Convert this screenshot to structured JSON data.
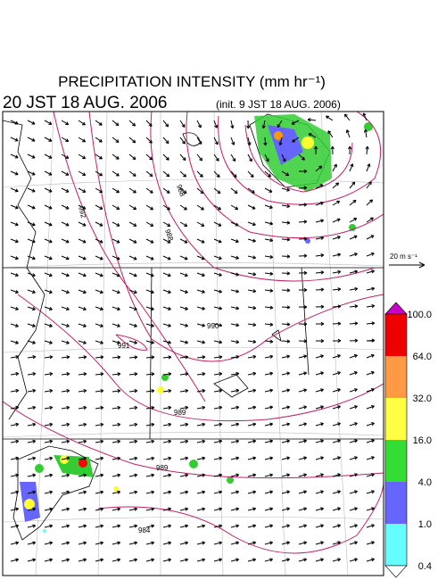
{
  "header": {
    "title": "PRECIPITATION INTENSITY (mm hr⁻¹)",
    "valid_time": "20 JST 18 AUG. 2006",
    "init_time": "(init. 9 JST 18 AUG. 2006)"
  },
  "vector_legend": {
    "label": "20 m s⁻¹"
  },
  "colorbar": {
    "labels": [
      "100.0",
      "64.0",
      "32.0",
      "16.0",
      "4.0",
      "1.0",
      "0.4"
    ]
  },
  "contour_labels": [
    "992",
    "988",
    "988",
    "990",
    "991",
    "989",
    "989",
    "984"
  ]
}
